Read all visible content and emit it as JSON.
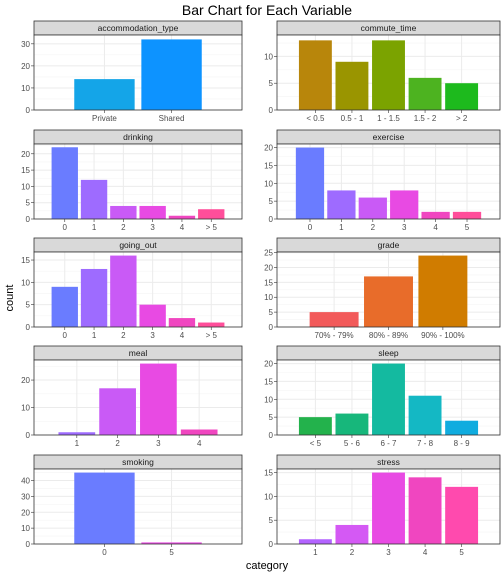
{
  "title": "Bar Chart for Each Variable",
  "xlabel": "category",
  "ylabel": "count",
  "colors": {
    "panel_bg": "#ffffff",
    "grid_major": "#ebebeb",
    "grid_minor": "#f5f5f5",
    "strip_bg": "#d9d9d9",
    "border": "#333333"
  },
  "chart_data": [
    {
      "type": "bar",
      "facet": "accommodation_type",
      "categories": [
        "Private",
        "Shared"
      ],
      "values": [
        14,
        32
      ],
      "ylim": [
        0,
        34
      ],
      "yticks": [
        0,
        10,
        20,
        30
      ],
      "colors": [
        "#14A5E8",
        "#0D93FF"
      ]
    },
    {
      "type": "bar",
      "facet": "commute_time",
      "categories": [
        "< 0.5",
        "0.5 - 1",
        "1 - 1.5",
        "1.5 - 2",
        "> 2"
      ],
      "values": [
        13,
        9,
        13,
        6,
        5
      ],
      "ylim": [
        0,
        14
      ],
      "yticks": [
        0,
        5,
        10
      ],
      "colors": [
        "#B8860B",
        "#9A9500",
        "#7BA300",
        "#4DB320",
        "#1DBA1D"
      ]
    },
    {
      "type": "bar",
      "facet": "drinking",
      "categories": [
        "0",
        "1",
        "2",
        "3",
        "4",
        "> 5"
      ],
      "values": [
        22,
        12,
        4,
        4,
        1,
        3
      ],
      "ylim": [
        0,
        23
      ],
      "yticks": [
        0,
        5,
        10,
        15,
        20
      ],
      "colors": [
        "#6A7CFF",
        "#9E6BFF",
        "#C95AF6",
        "#E84AE3",
        "#F046C0",
        "#FF4E9A"
      ]
    },
    {
      "type": "bar",
      "facet": "exercise",
      "categories": [
        "0",
        "1",
        "2",
        "3",
        "4",
        "5"
      ],
      "values": [
        20,
        8,
        6,
        8,
        2,
        2
      ],
      "ylim": [
        0,
        21
      ],
      "yticks": [
        0,
        5,
        10,
        15,
        20
      ],
      "colors": [
        "#6A7CFF",
        "#9E6BFF",
        "#C95AF6",
        "#E84AE3",
        "#F046C0",
        "#FF4E9A"
      ]
    },
    {
      "type": "bar",
      "facet": "going_out",
      "categories": [
        "0",
        "1",
        "2",
        "3",
        "4",
        "> 5"
      ],
      "values": [
        9,
        13,
        16,
        5,
        2,
        1
      ],
      "ylim": [
        0,
        16.8
      ],
      "yticks": [
        0,
        5,
        10,
        15
      ],
      "colors": [
        "#6A7CFF",
        "#9E6BFF",
        "#C95AF6",
        "#E84AE3",
        "#F046C0",
        "#FF4E9A"
      ]
    },
    {
      "type": "bar",
      "facet": "grade",
      "categories": [
        "70% - 79%",
        "80% - 89%",
        "90% - 100%"
      ],
      "values": [
        5,
        17,
        24
      ],
      "ylim": [
        0,
        25.2
      ],
      "yticks": [
        0,
        5,
        10,
        15,
        20,
        25
      ],
      "colors": [
        "#F25A5A",
        "#E86C2A",
        "#D07C00"
      ]
    },
    {
      "type": "bar",
      "facet": "meal",
      "categories": [
        "1",
        "2",
        "3",
        "4"
      ],
      "values": [
        1,
        17,
        26,
        2
      ],
      "ylim": [
        0,
        27.3
      ],
      "yticks": [
        0,
        10,
        20
      ],
      "colors": [
        "#9E6BFF",
        "#C95AF6",
        "#E84AE3",
        "#F046C0"
      ]
    },
    {
      "type": "bar",
      "facet": "sleep",
      "categories": [
        "< 5",
        "5 - 6",
        "6 - 7",
        "7 - 8",
        "8 - 9"
      ],
      "values": [
        5,
        6,
        20,
        11,
        4
      ],
      "ylim": [
        0,
        21
      ],
      "yticks": [
        0,
        5,
        10,
        15,
        20
      ],
      "colors": [
        "#23B24C",
        "#17B77B",
        "#14BAA0",
        "#14B8C4",
        "#10ACDF"
      ]
    },
    {
      "type": "bar",
      "facet": "smoking",
      "categories": [
        "0",
        "5"
      ],
      "values": [
        45,
        1
      ],
      "ylim": [
        0,
        47.25
      ],
      "yticks": [
        0,
        10,
        20,
        30,
        40
      ],
      "colors": [
        "#6A7CFF",
        "#E84AE3"
      ]
    },
    {
      "type": "bar",
      "facet": "stress",
      "categories": [
        "1",
        "2",
        "3",
        "4",
        "5"
      ],
      "values": [
        1,
        4,
        15,
        14,
        12
      ],
      "ylim": [
        0,
        15.75
      ],
      "yticks": [
        0,
        5,
        10,
        15
      ],
      "colors": [
        "#B363FF",
        "#D459F4",
        "#E84AE3",
        "#F046C0",
        "#FF4AAE"
      ]
    }
  ]
}
